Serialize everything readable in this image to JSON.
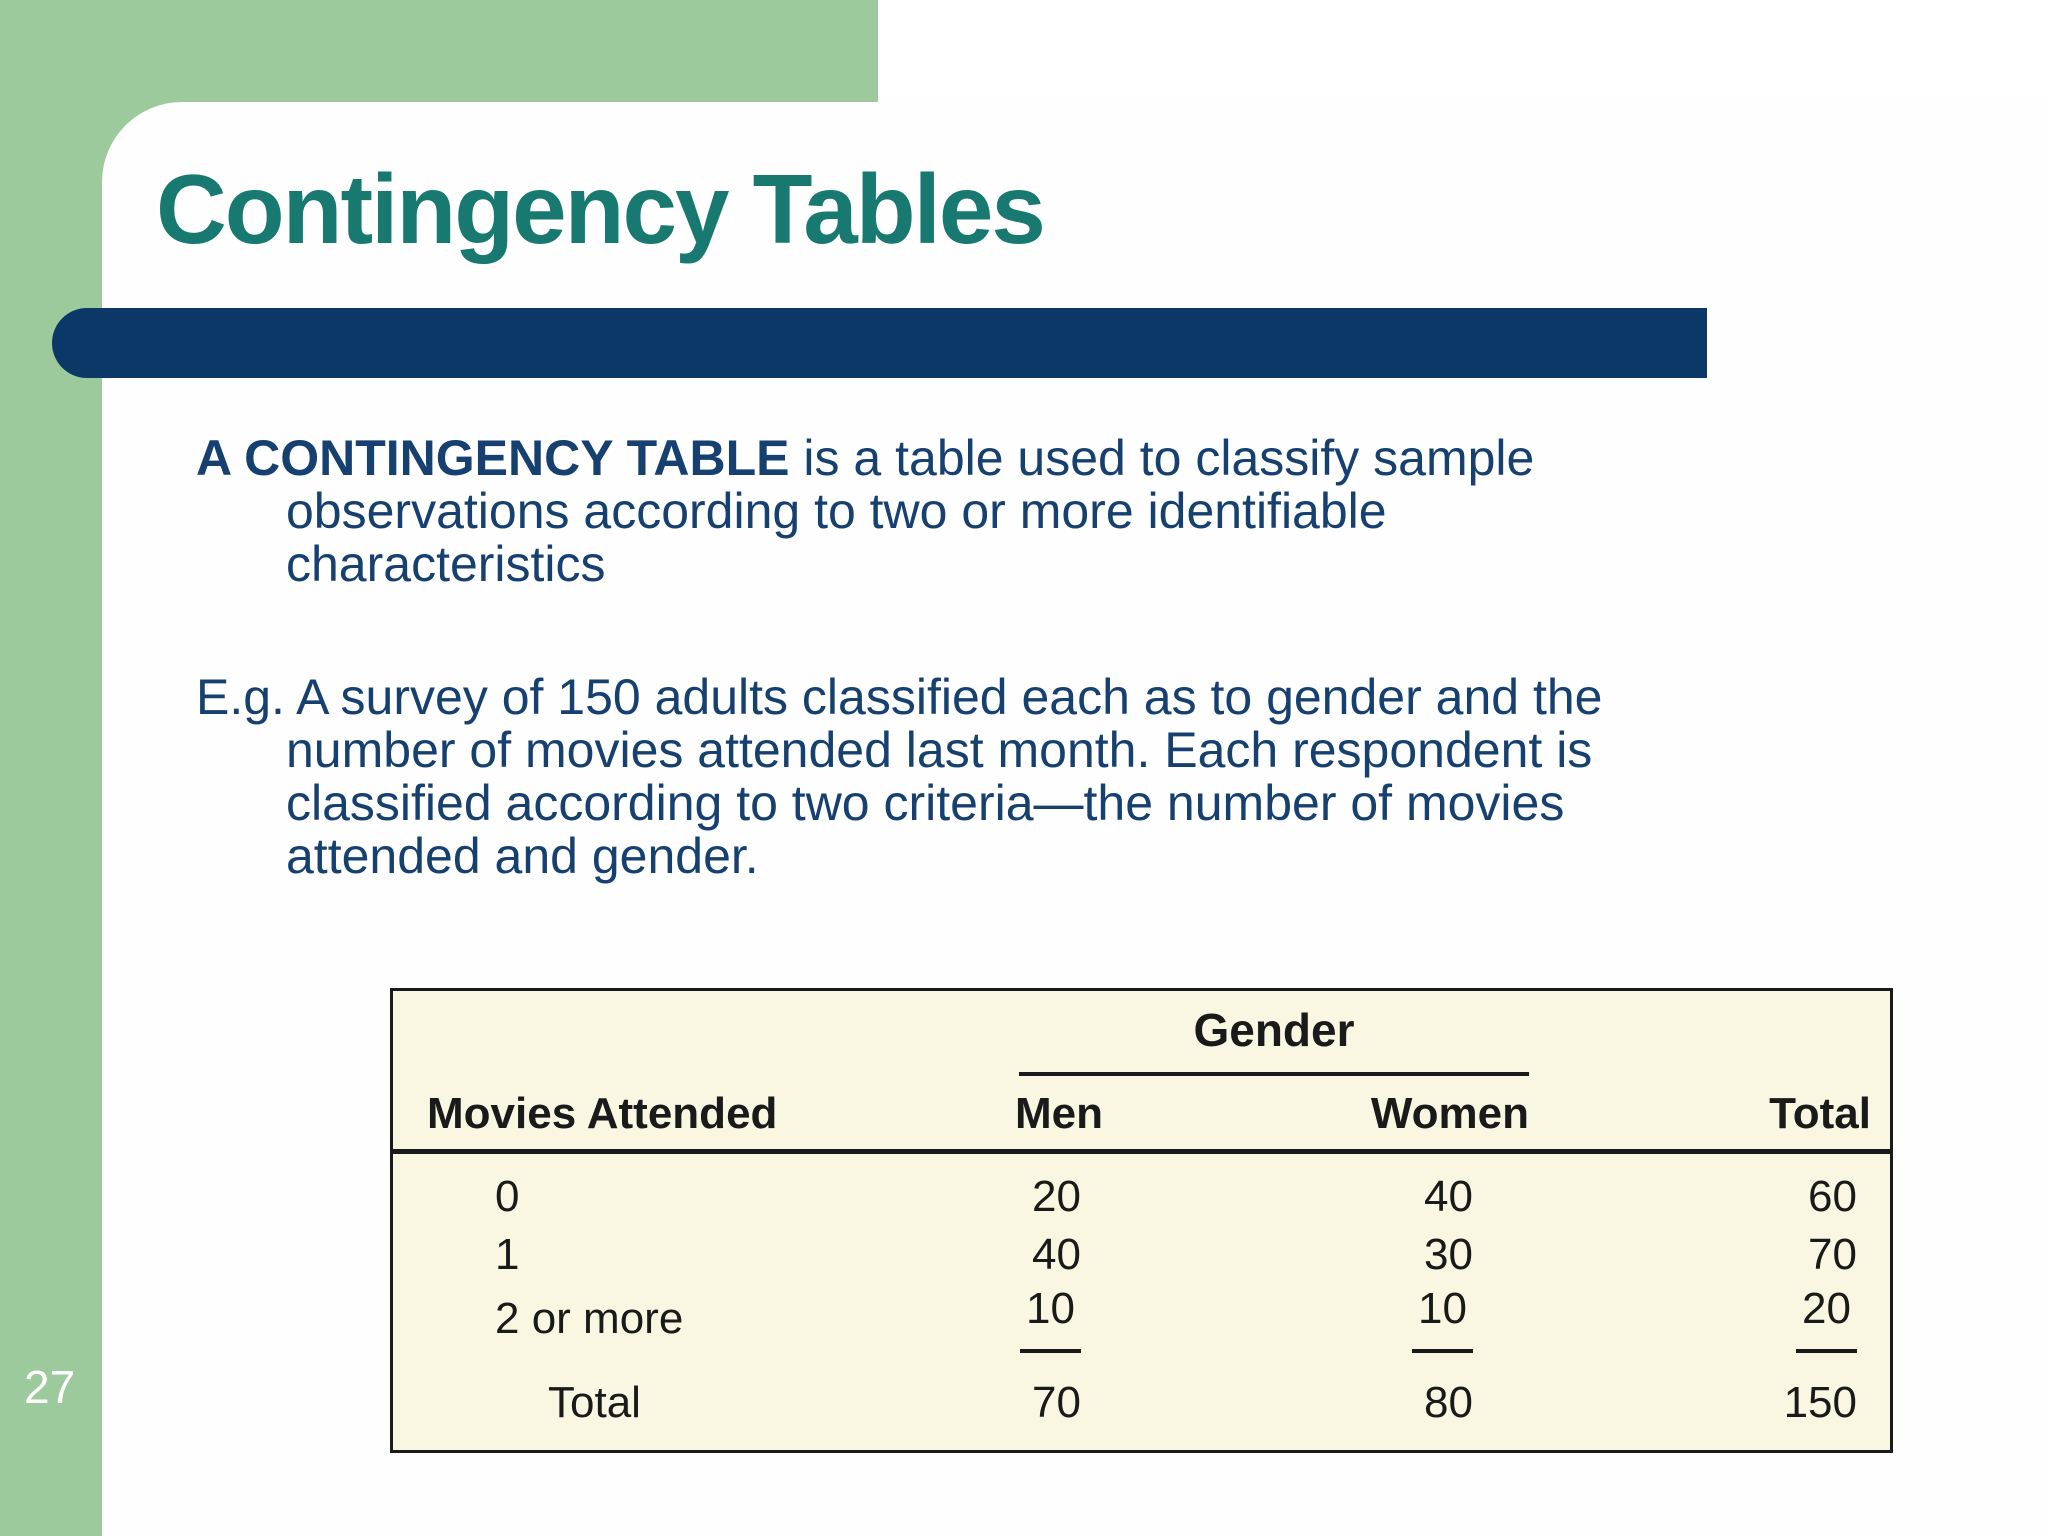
{
  "slide": {
    "title": "Contingency Tables",
    "page_number": "27"
  },
  "colors": {
    "background_green": "#9CCA9C",
    "card_white": "#FEFEFE",
    "title_teal": "#177970",
    "accent_navy": "#0B3866",
    "body_navy": "#16406F",
    "table_bg": "#F9F6E2",
    "table_text": "#1A1A1A",
    "page_number_white": "#FFFFFF"
  },
  "paragraphs": {
    "definition": {
      "bold": "A CONTINGENCY TABLE",
      "line1_rest": " is a table used to classify sample",
      "line2": "observations according to two or more identifiable",
      "line3": "characteristics"
    },
    "example": {
      "line1": "E.g. A survey of 150 adults classified each as to gender and the",
      "line2": "number of movies attended last month. Each respondent is",
      "line3": "classified according to two criteria—the number of movies",
      "line4": "attended and gender."
    }
  },
  "table": {
    "spanner": "Gender",
    "columns": [
      "Movies Attended",
      "Men",
      "Women",
      "Total"
    ],
    "rows": [
      {
        "label": "0",
        "men": "20",
        "women": "40",
        "total": "60"
      },
      {
        "label": "1",
        "men": "40",
        "women": "30",
        "total": "70"
      },
      {
        "label": "2 or more",
        "men": "10",
        "women": "10",
        "total": "20"
      },
      {
        "label": "Total",
        "men": "70",
        "women": "80",
        "total": "150"
      }
    ]
  }
}
